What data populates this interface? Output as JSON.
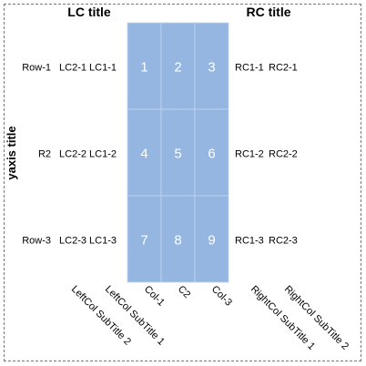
{
  "chart_data": {
    "type": "table",
    "title": "",
    "ylabel": "yaxis title",
    "left_title": "LC title",
    "right_title": "RC title",
    "columns": [
      "Col-1",
      "C2",
      "Col-3"
    ],
    "rows": [
      "Row-1",
      "R2",
      "Row-3"
    ],
    "values": [
      [
        1,
        2,
        3
      ],
      [
        4,
        5,
        6
      ],
      [
        7,
        8,
        9
      ]
    ],
    "left_columns": [
      {
        "subtitle": "LeftCol SubTitle 2",
        "labels": [
          "LC2-1",
          "LC2-2",
          "LC2-3"
        ]
      },
      {
        "subtitle": "LeftCol SubTitle 1",
        "labels": [
          "LC1-1",
          "LC1-2",
          "LC1-3"
        ]
      }
    ],
    "right_columns": [
      {
        "subtitle": "RightCol SubTitle 1",
        "labels": [
          "RC1-1",
          "RC1-2",
          "RC1-3"
        ]
      },
      {
        "subtitle": "RightCol SubTitle 2",
        "labels": [
          "RC2-1",
          "RC2-2",
          "RC2-3"
        ]
      }
    ],
    "cell_color": "#94b6e0",
    "cell_text_color": "#ffffff",
    "grid_line_color": "#c3d6ef",
    "frame_color": "#777777"
  }
}
